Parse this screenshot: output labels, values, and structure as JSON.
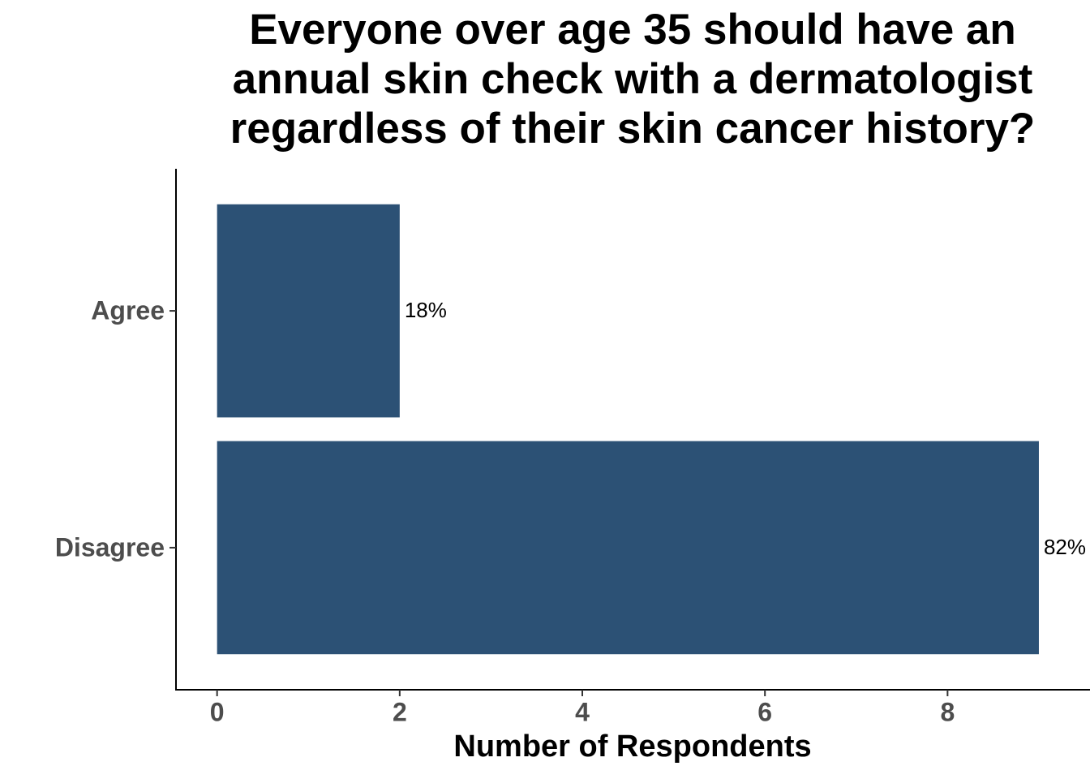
{
  "chart_data": {
    "type": "bar",
    "orientation": "horizontal",
    "title": [
      "Everyone over age 35 should have an",
      "annual skin check with a dermatologist",
      "regardless of their skin cancer history?"
    ],
    "x_label": "Number of Respondents",
    "categories": [
      "Agree",
      "Disagree"
    ],
    "values": [
      2,
      9
    ],
    "value_labels": [
      "18%",
      "82%"
    ],
    "color": "#2c5175",
    "xlim": [
      -0.45,
      9.56
    ],
    "xticks": [
      0,
      2,
      4,
      6,
      8
    ],
    "grid": false
  }
}
